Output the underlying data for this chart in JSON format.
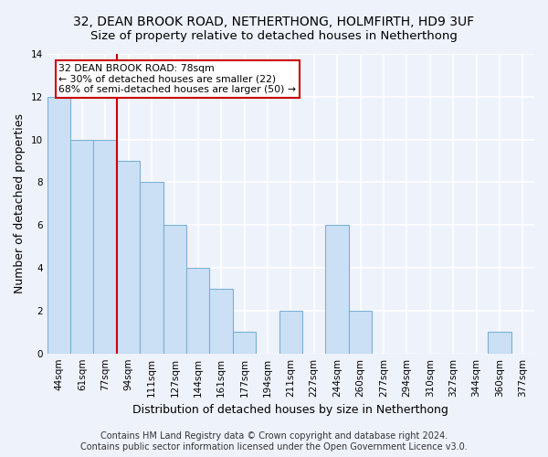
{
  "title": "32, DEAN BROOK ROAD, NETHERTHONG, HOLMFIRTH, HD9 3UF",
  "subtitle": "Size of property relative to detached houses in Netherthong",
  "xlabel": "Distribution of detached houses by size in Netherthong",
  "ylabel": "Number of detached properties",
  "footer_line1": "Contains HM Land Registry data © Crown copyright and database right 2024.",
  "footer_line2": "Contains public sector information licensed under the Open Government Licence v3.0.",
  "categories": [
    "44sqm",
    "61sqm",
    "77sqm",
    "94sqm",
    "111sqm",
    "127sqm",
    "144sqm",
    "161sqm",
    "177sqm",
    "194sqm",
    "211sqm",
    "227sqm",
    "244sqm",
    "260sqm",
    "277sqm",
    "294sqm",
    "310sqm",
    "327sqm",
    "344sqm",
    "360sqm",
    "377sqm"
  ],
  "values": [
    12,
    10,
    10,
    9,
    8,
    6,
    4,
    3,
    1,
    0,
    2,
    0,
    6,
    2,
    0,
    0,
    0,
    0,
    0,
    1,
    0
  ],
  "bar_color": "#cce0f5",
  "bar_edge_color": "#7ab0d4",
  "annotation_label": "32 DEAN BROOK ROAD: 78sqm",
  "annotation_line1": "← 30% of detached houses are smaller (22)",
  "annotation_line2": "68% of semi-detached houses are larger (50) →",
  "annotation_box_facecolor": "#ffffff",
  "annotation_box_edgecolor": "#cc0000",
  "vline_color": "#cc0000",
  "vline_x_index": 2.5,
  "ylim": [
    0,
    14
  ],
  "yticks": [
    0,
    2,
    4,
    6,
    8,
    10,
    12,
    14
  ],
  "background_color": "#eef2fb",
  "grid_color": "#ffffff",
  "title_fontsize": 10,
  "subtitle_fontsize": 9.5,
  "axis_label_fontsize": 9,
  "tick_fontsize": 7.5,
  "footer_fontsize": 7
}
